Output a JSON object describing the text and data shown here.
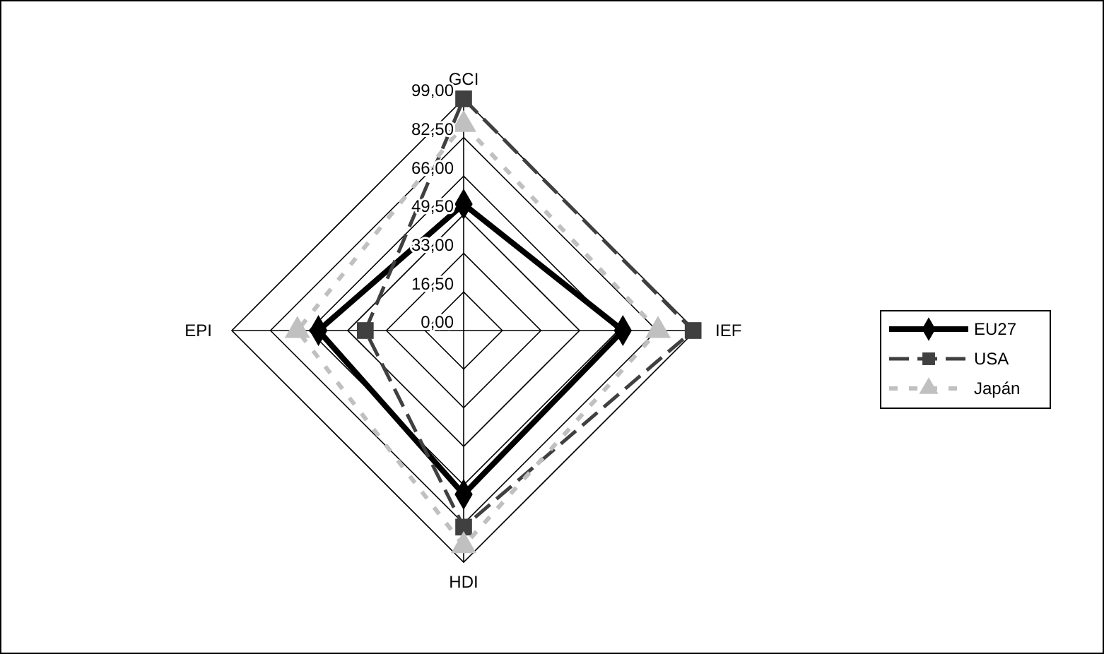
{
  "chart_data": {
    "type": "radar",
    "categories": [
      "GCI",
      "IEF",
      "HDI",
      "EPI"
    ],
    "ylim": [
      0,
      99
    ],
    "yticks": [
      {
        "value": 0,
        "label": "0,00"
      },
      {
        "value": 16.5,
        "label": "16,50"
      },
      {
        "value": 33,
        "label": "33,00"
      },
      {
        "value": 49.5,
        "label": "49,50"
      },
      {
        "value": 66,
        "label": "66,00"
      },
      {
        "value": 82.5,
        "label": "82,50"
      },
      {
        "value": 99,
        "label": "99,00"
      }
    ],
    "grid": true,
    "legend": "right",
    "series": [
      {
        "name": "EU27",
        "color": "#000000",
        "values": [
          54,
          68,
          70,
          62
        ],
        "marker": "diamond",
        "line_style": "solid"
      },
      {
        "name": "USA",
        "color": "#404040",
        "values": [
          99,
          98,
          84,
          42
        ],
        "marker": "square",
        "line_style": "dashed"
      },
      {
        "name": "Japán",
        "color": "#c0c0c0",
        "values": [
          88,
          83,
          92,
          71
        ],
        "marker": "triangle",
        "line_style": "dotted"
      }
    ]
  }
}
